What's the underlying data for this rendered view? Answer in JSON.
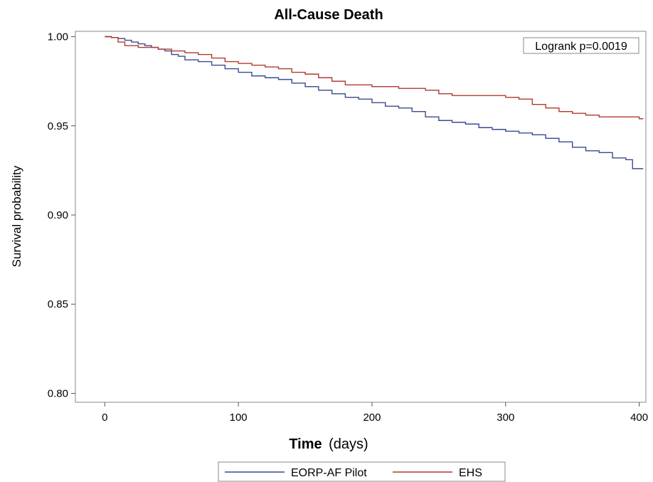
{
  "chart_data": {
    "type": "line",
    "title": "All-Cause Death",
    "xlabel_bold": "Time",
    "xlabel_unit": "(days)",
    "ylabel": "Survival probability",
    "xlim": [
      -22,
      405
    ],
    "ylim": [
      0.795,
      1.003
    ],
    "x_ticks": [
      0,
      100,
      200,
      300,
      400
    ],
    "x_tick_labels": [
      "0",
      "100",
      "200",
      "300",
      "400"
    ],
    "y_ticks": [
      0.8,
      0.85,
      0.9,
      0.95,
      1.0
    ],
    "y_tick_labels": [
      "0.80",
      "0.85",
      "0.90",
      "0.95",
      "1.00"
    ],
    "grid": false,
    "legend_position": "bottom",
    "annotation": "Logrank p=0.0019",
    "series": [
      {
        "name": "EORP-AF Pilot",
        "color": "#3b4a8f",
        "x": [
          0,
          5,
          10,
          15,
          20,
          25,
          30,
          35,
          40,
          45,
          50,
          55,
          60,
          70,
          80,
          90,
          100,
          110,
          120,
          130,
          140,
          150,
          160,
          170,
          180,
          190,
          200,
          210,
          220,
          230,
          240,
          250,
          260,
          270,
          280,
          290,
          300,
          310,
          320,
          330,
          340,
          350,
          360,
          370,
          380,
          390,
          395,
          400,
          403
        ],
        "y": [
          1.0,
          0.9995,
          0.999,
          0.998,
          0.997,
          0.996,
          0.995,
          0.994,
          0.993,
          0.992,
          0.99,
          0.989,
          0.987,
          0.986,
          0.984,
          0.982,
          0.98,
          0.978,
          0.977,
          0.976,
          0.974,
          0.972,
          0.97,
          0.968,
          0.966,
          0.965,
          0.963,
          0.961,
          0.96,
          0.958,
          0.955,
          0.953,
          0.952,
          0.951,
          0.949,
          0.948,
          0.947,
          0.946,
          0.945,
          0.943,
          0.941,
          0.938,
          0.936,
          0.935,
          0.932,
          0.931,
          0.926,
          0.926,
          0.926
        ]
      },
      {
        "name": "EHS",
        "color": "#b03a2e",
        "x": [
          0,
          5,
          10,
          15,
          20,
          25,
          30,
          40,
          50,
          60,
          70,
          80,
          90,
          100,
          110,
          120,
          130,
          140,
          150,
          160,
          170,
          180,
          200,
          220,
          240,
          250,
          260,
          280,
          300,
          310,
          320,
          330,
          340,
          350,
          360,
          370,
          380,
          390,
          400,
          403
        ],
        "y": [
          1.0,
          0.9995,
          0.997,
          0.995,
          0.995,
          0.994,
          0.994,
          0.993,
          0.992,
          0.991,
          0.99,
          0.988,
          0.986,
          0.985,
          0.984,
          0.983,
          0.982,
          0.98,
          0.979,
          0.977,
          0.975,
          0.973,
          0.972,
          0.971,
          0.97,
          0.968,
          0.967,
          0.967,
          0.966,
          0.965,
          0.962,
          0.96,
          0.958,
          0.957,
          0.956,
          0.955,
          0.955,
          0.955,
          0.954,
          0.954
        ]
      }
    ]
  }
}
